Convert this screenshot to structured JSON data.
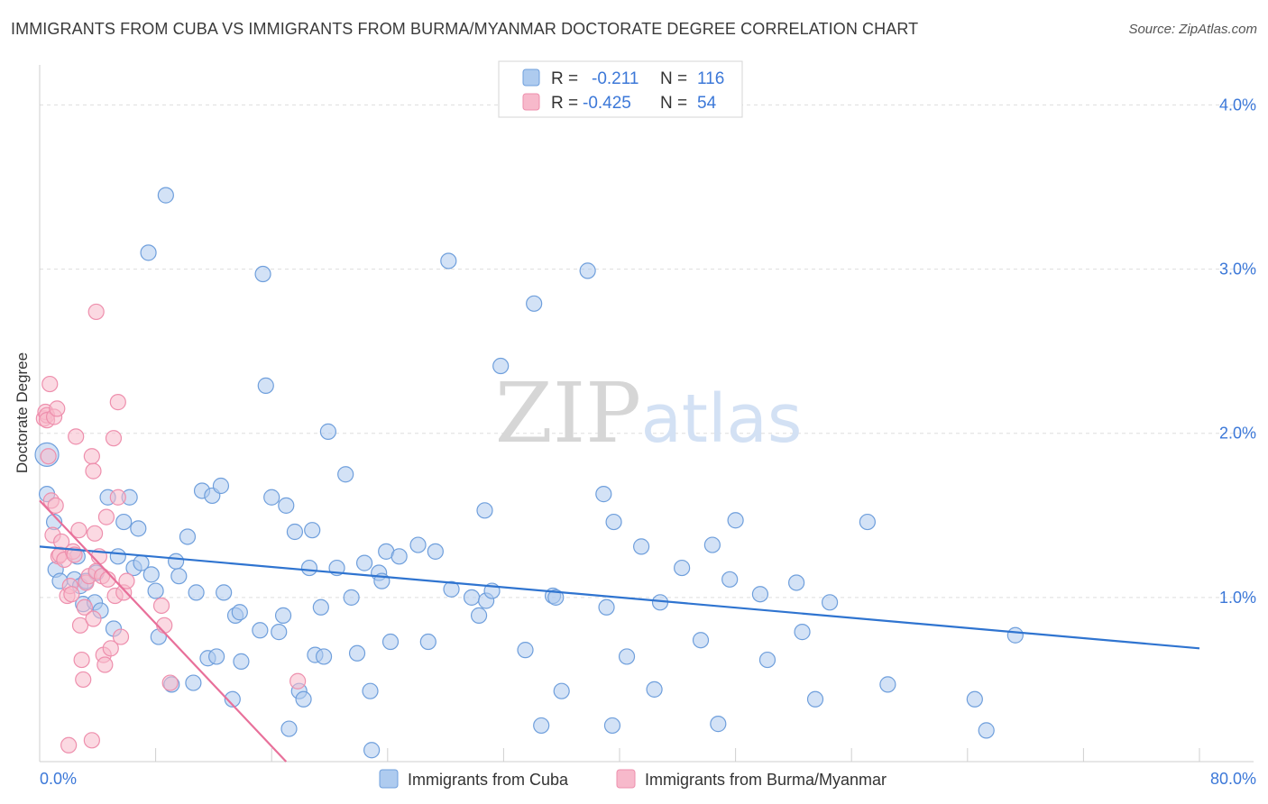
{
  "header": {
    "title": "IMMIGRANTS FROM CUBA VS IMMIGRANTS FROM BURMA/MYANMAR DOCTORATE DEGREE CORRELATION CHART",
    "source": "Source: ZipAtlas.com"
  },
  "watermark": {
    "zip": "ZIP",
    "atlas": "atlas"
  },
  "colors": {
    "cuba_fill": "#aecbef",
    "cuba_stroke": "#6f9fdc",
    "cuba_line": "#2f74d0",
    "burma_fill": "#f7b9cb",
    "burma_stroke": "#ee8fad",
    "burma_line": "#e8709a",
    "axis_label": "#3c78d8",
    "grid": "#dddddd"
  },
  "chart_data": {
    "type": "scatter",
    "title": "IMMIGRANTS FROM CUBA VS IMMIGRANTS FROM BURMA/MYANMAR DOCTORATE DEGREE CORRELATION CHART",
    "xlabel": "",
    "ylabel": "Doctorate Degree",
    "xlim": [
      0,
      80
    ],
    "ylim": [
      0,
      4.2
    ],
    "x_tick_labels": [
      "0.0%",
      "80.0%"
    ],
    "y_ticks": [
      1,
      2,
      3,
      4
    ],
    "y_tick_labels": [
      "1.0%",
      "2.0%",
      "3.0%",
      "4.0%"
    ],
    "legend_position": "top-center",
    "bottom_legend": [
      "Immigrants from Cuba",
      "Immigrants from Burma/Myanmar"
    ],
    "stats": [
      {
        "r_label": "R =",
        "r_value": "-0.211",
        "n_label": "N =",
        "n_value": "116"
      },
      {
        "r_label": "R =",
        "r_value": "-0.425",
        "n_label": "N =",
        "n_value": "54"
      }
    ],
    "series": [
      {
        "name": "Immigrants from Cuba",
        "r": -0.211,
        "n": 116,
        "trend": {
          "x": [
            0,
            80
          ],
          "y": [
            1.31,
            0.69
          ]
        },
        "points": [
          [
            0.5,
            1.87
          ],
          [
            0.5,
            1.63
          ],
          [
            1.0,
            1.46
          ],
          [
            1.1,
            1.17
          ],
          [
            1.4,
            1.1
          ],
          [
            2.4,
            1.11
          ],
          [
            2.6,
            1.25
          ],
          [
            2.8,
            1.07
          ],
          [
            3.0,
            0.96
          ],
          [
            3.2,
            1.1
          ],
          [
            3.8,
            0.97
          ],
          [
            3.9,
            1.15
          ],
          [
            4.2,
            0.92
          ],
          [
            4.7,
            1.61
          ],
          [
            5.1,
            0.81
          ],
          [
            5.4,
            1.25
          ],
          [
            5.8,
            1.46
          ],
          [
            6.2,
            1.61
          ],
          [
            6.5,
            1.18
          ],
          [
            6.8,
            1.42
          ],
          [
            7.0,
            1.21
          ],
          [
            7.5,
            3.1
          ],
          [
            7.7,
            1.14
          ],
          [
            8.0,
            1.04
          ],
          [
            8.2,
            0.76
          ],
          [
            8.7,
            3.45
          ],
          [
            9.1,
            0.47
          ],
          [
            9.4,
            1.22
          ],
          [
            9.6,
            1.13
          ],
          [
            10.2,
            1.37
          ],
          [
            10.6,
            0.48
          ],
          [
            10.8,
            1.03
          ],
          [
            11.2,
            1.65
          ],
          [
            11.6,
            0.63
          ],
          [
            11.9,
            1.62
          ],
          [
            12.2,
            0.64
          ],
          [
            12.5,
            1.68
          ],
          [
            12.7,
            1.03
          ],
          [
            13.3,
            0.38
          ],
          [
            13.5,
            0.89
          ],
          [
            13.8,
            0.91
          ],
          [
            13.9,
            0.61
          ],
          [
            15.2,
            0.8
          ],
          [
            15.4,
            2.97
          ],
          [
            15.6,
            2.29
          ],
          [
            16.0,
            1.61
          ],
          [
            16.5,
            0.79
          ],
          [
            16.8,
            0.89
          ],
          [
            17.0,
            1.56
          ],
          [
            17.2,
            0.2
          ],
          [
            17.6,
            1.4
          ],
          [
            17.9,
            0.43
          ],
          [
            18.2,
            0.38
          ],
          [
            18.6,
            1.18
          ],
          [
            18.8,
            1.41
          ],
          [
            19.0,
            0.65
          ],
          [
            19.4,
            0.94
          ],
          [
            19.6,
            0.64
          ],
          [
            19.9,
            2.01
          ],
          [
            20.5,
            1.18
          ],
          [
            21.1,
            1.75
          ],
          [
            21.5,
            1.0
          ],
          [
            21.9,
            0.66
          ],
          [
            22.4,
            1.21
          ],
          [
            22.8,
            0.43
          ],
          [
            22.9,
            0.07
          ],
          [
            23.4,
            1.15
          ],
          [
            23.6,
            1.1
          ],
          [
            23.9,
            1.28
          ],
          [
            24.2,
            0.73
          ],
          [
            24.8,
            1.25
          ],
          [
            26.1,
            1.32
          ],
          [
            26.8,
            0.73
          ],
          [
            27.3,
            1.28
          ],
          [
            28.2,
            3.05
          ],
          [
            28.4,
            1.05
          ],
          [
            29.8,
            1.0
          ],
          [
            30.3,
            0.89
          ],
          [
            30.7,
            1.53
          ],
          [
            30.8,
            0.98
          ],
          [
            31.2,
            1.04
          ],
          [
            31.8,
            2.41
          ],
          [
            33.5,
            0.68
          ],
          [
            34.1,
            2.79
          ],
          [
            34.6,
            0.22
          ],
          [
            35.4,
            1.01
          ],
          [
            35.6,
            1.0
          ],
          [
            36.0,
            0.43
          ],
          [
            37.8,
            2.99
          ],
          [
            38.9,
            1.63
          ],
          [
            39.1,
            0.94
          ],
          [
            39.5,
            0.22
          ],
          [
            39.6,
            1.46
          ],
          [
            40.5,
            0.64
          ],
          [
            41.5,
            1.31
          ],
          [
            42.4,
            0.44
          ],
          [
            42.8,
            0.97
          ],
          [
            44.3,
            1.18
          ],
          [
            45.6,
            0.74
          ],
          [
            46.4,
            1.32
          ],
          [
            46.8,
            0.23
          ],
          [
            47.6,
            1.11
          ],
          [
            48.0,
            1.47
          ],
          [
            49.7,
            1.02
          ],
          [
            50.2,
            0.62
          ],
          [
            52.2,
            1.09
          ],
          [
            52.6,
            0.79
          ],
          [
            53.5,
            0.38
          ],
          [
            54.5,
            0.97
          ],
          [
            57.1,
            1.46
          ],
          [
            58.5,
            0.47
          ],
          [
            64.5,
            0.38
          ],
          [
            65.3,
            0.19
          ],
          [
            67.3,
            0.77
          ]
        ]
      },
      {
        "name": "Immigrants from Burma/Myanmar",
        "r": -0.425,
        "n": 54,
        "trend": {
          "x": [
            0,
            17
          ],
          "y": [
            1.59,
            0.0
          ]
        },
        "points": [
          [
            0.3,
            2.09
          ],
          [
            0.4,
            2.13
          ],
          [
            0.5,
            2.11
          ],
          [
            0.5,
            2.08
          ],
          [
            0.6,
            1.86
          ],
          [
            0.7,
            2.3
          ],
          [
            0.8,
            1.59
          ],
          [
            0.9,
            1.38
          ],
          [
            1.0,
            2.1
          ],
          [
            1.1,
            1.56
          ],
          [
            1.2,
            2.15
          ],
          [
            1.3,
            1.25
          ],
          [
            1.4,
            1.26
          ],
          [
            1.5,
            1.34
          ],
          [
            1.7,
            1.23
          ],
          [
            1.9,
            1.01
          ],
          [
            2.1,
            1.07
          ],
          [
            2.2,
            1.02
          ],
          [
            2.3,
            1.28
          ],
          [
            2.4,
            1.26
          ],
          [
            2.5,
            1.98
          ],
          [
            2.7,
            1.41
          ],
          [
            2.8,
            0.83
          ],
          [
            2.9,
            0.62
          ],
          [
            3.0,
            0.5
          ],
          [
            3.1,
            0.94
          ],
          [
            3.2,
            1.09
          ],
          [
            3.4,
            1.13
          ],
          [
            3.6,
            1.86
          ],
          [
            3.7,
            0.87
          ],
          [
            3.8,
            1.39
          ],
          [
            3.9,
            1.16
          ],
          [
            4.1,
            1.25
          ],
          [
            4.3,
            1.13
          ],
          [
            4.4,
            0.65
          ],
          [
            4.5,
            0.59
          ],
          [
            4.6,
            1.49
          ],
          [
            4.7,
            1.11
          ],
          [
            4.9,
            0.69
          ],
          [
            5.1,
            1.97
          ],
          [
            5.2,
            1.01
          ],
          [
            5.4,
            1.61
          ],
          [
            5.6,
            0.76
          ],
          [
            5.8,
            1.03
          ],
          [
            6.0,
            1.1
          ],
          [
            8.4,
            0.95
          ],
          [
            8.6,
            0.83
          ],
          [
            9.0,
            0.48
          ],
          [
            17.8,
            0.49
          ],
          [
            3.9,
            2.74
          ],
          [
            5.4,
            2.19
          ],
          [
            3.7,
            1.77
          ],
          [
            2.0,
            0.1
          ],
          [
            3.6,
            0.13
          ]
        ]
      }
    ]
  }
}
